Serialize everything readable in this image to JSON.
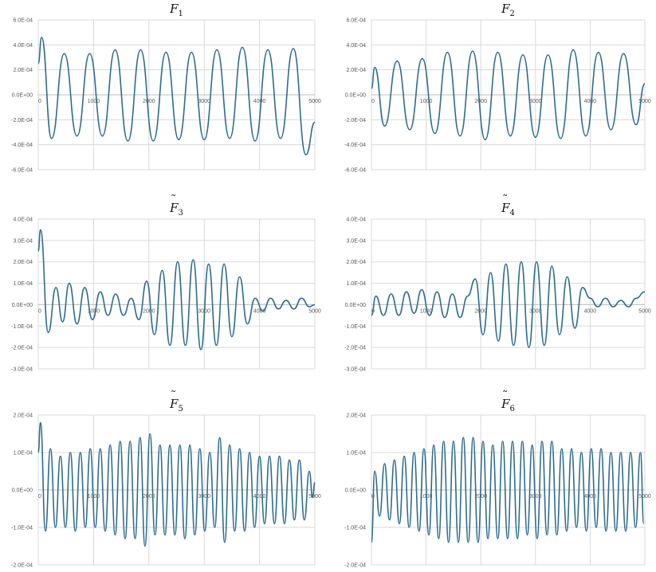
{
  "series_color": "#2e6d8f",
  "grid_color": "#d9d9d9",
  "panels": [
    {
      "title_letter": "F",
      "title_sub": "1",
      "ylim": [
        -0.0006,
        0.0006
      ],
      "y_ticks": [
        "6.0E-04",
        "4.0E-04",
        "2.0E-04",
        "0.0E+00",
        "-2.0E-04",
        "-4.0E-04",
        "-6.0E-04"
      ],
      "x_ticks": [
        "0",
        "1000",
        "2000",
        "3000",
        "4000",
        "5000"
      ],
      "chart_data": {
        "type": "line",
        "xlim": [
          0,
          5000
        ],
        "x": [
          0,
          60,
          240,
          470,
          700,
          930,
          1160,
          1390,
          1620,
          1850,
          2080,
          2310,
          2540,
          2770,
          3000,
          3230,
          3460,
          3690,
          3920,
          4150,
          4380,
          4610,
          4840,
          5000
        ],
        "y": [
          0.00025,
          0.00046,
          -0.00035,
          0.00033,
          -0.00033,
          0.00033,
          -0.00033,
          0.00036,
          -0.00037,
          0.00036,
          -0.00037,
          0.00034,
          -0.00036,
          0.00034,
          -0.00036,
          0.00036,
          -0.00035,
          0.00038,
          -0.00037,
          0.00036,
          -0.00035,
          0.00037,
          -0.00048,
          -0.00022
        ]
      }
    },
    {
      "title_letter": "F",
      "title_sub": "2",
      "ylim": [
        -0.0006,
        0.0006
      ],
      "y_ticks": [
        "6.0E-04",
        "4.0E-04",
        "2.0E-04",
        "0.0E+00",
        "-2.0E-04",
        "-4.0E-04",
        "-6.0E-04"
      ],
      "x_ticks": [
        "0",
        "1000",
        "2000",
        "3000",
        "4000",
        "5000"
      ],
      "chart_data": {
        "type": "line",
        "xlim": [
          0,
          5000
        ],
        "x": [
          0,
          60,
          240,
          470,
          700,
          930,
          1160,
          1390,
          1620,
          1850,
          2080,
          2310,
          2540,
          2770,
          3000,
          3230,
          3460,
          3690,
          3920,
          4150,
          4380,
          4610,
          4840,
          5000
        ],
        "y": [
          5e-05,
          0.00022,
          -0.00025,
          0.00027,
          -0.00028,
          0.00029,
          -0.00031,
          0.00034,
          -0.00033,
          0.00035,
          -0.00036,
          0.00034,
          -0.00033,
          0.00032,
          -0.00034,
          0.00032,
          -0.00035,
          0.00036,
          -0.00033,
          0.00034,
          -0.00028,
          0.00033,
          -0.00024,
          9e-05
        ]
      }
    },
    {
      "title_letter": "F",
      "title_sub": "3",
      "ylim": [
        -0.0003,
        0.0004
      ],
      "y_ticks": [
        "4.0E-04",
        "3.0E-04",
        "2.0E-04",
        "1.0E-04",
        "0.0E+00",
        "-1.0E-04",
        "-2.0E-04",
        "-3.0E-04"
      ],
      "x_ticks": [
        "0",
        "1000",
        "2000",
        "3000",
        "4000",
        "5000"
      ],
      "chart_data": {
        "type": "line",
        "xlim": [
          0,
          5000
        ],
        "x": [
          0,
          40,
          180,
          320,
          440,
          560,
          700,
          840,
          980,
          1120,
          1260,
          1400,
          1540,
          1680,
          1820,
          1960,
          2100,
          2240,
          2380,
          2520,
          2660,
          2800,
          2940,
          3080,
          3220,
          3360,
          3500,
          3640,
          3780,
          3920,
          4060,
          4200,
          4340,
          4480,
          4620,
          4760,
          4900,
          5000
        ],
        "y": [
          0.00025,
          0.00035,
          -0.00013,
          8e-05,
          -8e-05,
          0.0001,
          -9e-05,
          8e-05,
          -7e-05,
          6e-05,
          -5e-05,
          5e-05,
          -5e-05,
          3e-05,
          -7e-05,
          0.00011,
          -0.00014,
          0.00016,
          -0.00019,
          0.0002,
          -0.00019,
          0.00021,
          -0.00021,
          0.00019,
          -0.00019,
          0.00019,
          -0.00015,
          0.00013,
          -9e-05,
          3e-05,
          -3e-05,
          3e-05,
          -2e-05,
          2e-05,
          -2e-05,
          3e-05,
          -1e-05,
          0.0
        ]
      }
    },
    {
      "title_letter": "F",
      "title_sub": "4",
      "ylim": [
        -0.0003,
        0.0004
      ],
      "y_ticks": [
        "4.0E-04",
        "3.0E-04",
        "2.0E-04",
        "1.0E-04",
        "0.0E+00",
        "-1.0E-04",
        "-2.0E-04",
        "-3.0E-04"
      ],
      "x_ticks": [
        "0",
        "1000",
        "2000",
        "3000",
        "4000",
        "5000"
      ],
      "chart_data": {
        "type": "line",
        "xlim": [
          0,
          5000
        ],
        "x": [
          0,
          80,
          220,
          360,
          500,
          640,
          780,
          920,
          1060,
          1200,
          1340,
          1480,
          1620,
          1760,
          1900,
          2040,
          2180,
          2320,
          2460,
          2600,
          2740,
          2880,
          3020,
          3160,
          3300,
          3440,
          3580,
          3720,
          3860,
          4000,
          4140,
          4280,
          4420,
          4560,
          4700,
          4840,
          5000
        ],
        "y": [
          -5e-05,
          4e-05,
          -5e-05,
          5e-05,
          -5e-05,
          6e-05,
          -4e-05,
          7e-05,
          -5e-05,
          6e-05,
          -6e-05,
          5e-05,
          -6e-05,
          4e-05,
          0.00012,
          -0.00014,
          0.00015,
          -0.00017,
          0.00019,
          -0.00019,
          0.0002,
          -0.0002,
          0.0002,
          -0.00019,
          0.00018,
          -0.00014,
          0.00013,
          -0.00011,
          8e-05,
          3e-05,
          -1e-05,
          3e-05,
          -1e-05,
          2e-05,
          -1e-05,
          3e-05,
          6e-05
        ]
      }
    },
    {
      "title_letter": "F",
      "title_sub": "5",
      "ylim": [
        -0.0002,
        0.0002
      ],
      "y_ticks": [
        "2.0E-04",
        "1.0E-04",
        "0.0E+00",
        "-1.0E-04",
        "-2.0E-04"
      ],
      "x_ticks": [
        "0",
        "1000",
        "2000",
        "3000",
        "4000",
        "5000"
      ],
      "chart_data": {
        "type": "line",
        "xlim": [
          0,
          5000
        ],
        "x": [
          0,
          40,
          130,
          220,
          310,
          400,
          490,
          580,
          670,
          760,
          850,
          940,
          1030,
          1120,
          1210,
          1300,
          1390,
          1480,
          1570,
          1660,
          1750,
          1840,
          1930,
          2020,
          2110,
          2200,
          2290,
          2380,
          2470,
          2560,
          2650,
          2740,
          2830,
          2920,
          3010,
          3100,
          3190,
          3280,
          3370,
          3460,
          3550,
          3640,
          3730,
          3820,
          3910,
          4000,
          4090,
          4180,
          4270,
          4360,
          4450,
          4540,
          4630,
          4720,
          4810,
          4900,
          4960,
          5000
        ],
        "y": [
          0.0001,
          0.00018,
          -0.00011,
          0.00011,
          -0.0001,
          9e-05,
          -0.0001,
          0.0001,
          -0.00011,
          0.0001,
          -0.0001,
          0.00011,
          -0.0001,
          0.00011,
          -0.00011,
          0.00012,
          -0.00012,
          0.00013,
          -0.00013,
          0.00013,
          -0.00013,
          0.00014,
          -0.00015,
          0.00015,
          -0.00012,
          0.00012,
          -0.00012,
          0.00012,
          -0.00012,
          0.00012,
          -0.00013,
          0.00012,
          -0.00012,
          0.00011,
          -0.00011,
          0.0001,
          -0.0001,
          0.00014,
          -0.00014,
          0.00012,
          -0.00011,
          0.00011,
          -0.00011,
          0.0001,
          -0.0001,
          9e-05,
          -9e-05,
          9e-05,
          -9e-05,
          9e-05,
          -9e-05,
          8e-05,
          -8e-05,
          8e-05,
          -8e-05,
          5e-05,
          -2e-05,
          2e-05
        ]
      }
    },
    {
      "title_letter": "F",
      "title_sub": "6",
      "ylim": [
        -0.0002,
        0.0002
      ],
      "y_ticks": [
        "2.0E-04",
        "1.0E-04",
        "0.0E+00",
        "-1.0E-04",
        "-2.0E-04"
      ],
      "x_ticks": [
        "0",
        "1000",
        "2000",
        "3000",
        "4000",
        "5000"
      ],
      "chart_data": {
        "type": "line",
        "xlim": [
          0,
          5000
        ],
        "x": [
          0,
          60,
          150,
          240,
          330,
          420,
          510,
          600,
          690,
          780,
          870,
          960,
          1050,
          1140,
          1230,
          1320,
          1410,
          1500,
          1590,
          1680,
          1770,
          1860,
          1950,
          2040,
          2130,
          2220,
          2310,
          2400,
          2490,
          2580,
          2670,
          2760,
          2850,
          2940,
          3030,
          3120,
          3210,
          3300,
          3390,
          3480,
          3570,
          3660,
          3750,
          3840,
          3930,
          4020,
          4110,
          4200,
          4290,
          4380,
          4470,
          4560,
          4650,
          4740,
          4830,
          4920,
          4980
        ],
        "y": [
          -0.00014,
          5e-05,
          -7e-05,
          7e-05,
          -8e-05,
          8e-05,
          -9e-05,
          9e-05,
          -0.0001,
          0.0001,
          -0.00011,
          0.00011,
          -0.00012,
          0.00012,
          -0.00013,
          0.00013,
          -0.00014,
          0.00013,
          -0.00014,
          0.00014,
          -0.00014,
          0.00014,
          -0.00014,
          0.00013,
          -0.00013,
          0.00012,
          -0.00013,
          0.00013,
          -0.00013,
          0.00013,
          -0.00013,
          0.00013,
          -0.00012,
          0.00012,
          -0.00013,
          0.00013,
          -0.00012,
          0.00013,
          -0.00012,
          0.00011,
          -0.00011,
          0.00011,
          -0.0001,
          0.0001,
          -0.00011,
          0.00011,
          -0.0001,
          0.00011,
          -0.00011,
          0.0001,
          -0.00011,
          0.0001,
          -0.00011,
          0.0001,
          -0.0001,
          0.0001,
          -9e-05
        ]
      }
    }
  ]
}
